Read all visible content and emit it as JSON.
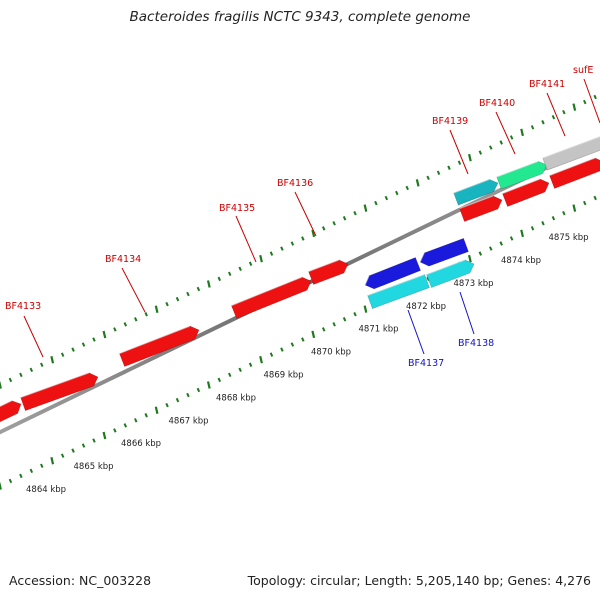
{
  "title": "Bacteroides fragilis NCTC 9343, complete genome",
  "footer": {
    "accession": "Accession: NC_003228",
    "summary": "Topology: circular; Length: 5,205,140 bp; Genes: 4,276"
  },
  "colors": {
    "forward_cds": "#ee1111",
    "reverse_cds": "#1a1add",
    "trna": "#22d8e0",
    "misc_teal": "#18b5c0",
    "misc_green": "#22e890",
    "misc_gray": "#c4c4c4",
    "tick": "#1f7a1f",
    "backbone": "#888888",
    "forward_label": "#cc0000",
    "reverse_label": "#1111cc"
  },
  "scale_labels": [
    "4864 kbp",
    "4865 kbp",
    "4866 kbp",
    "4867 kbp",
    "4868 kbp",
    "4869 kbp",
    "4870 kbp",
    "4871 kbp",
    "4872 kbp",
    "4873 kbp",
    "4874 kbp",
    "4875 kbp"
  ],
  "genes": {
    "forward": [
      "BF4133",
      "BF4134",
      "BF4135",
      "BF4136",
      "BF4139",
      "BF4140",
      "BF4141",
      "sufE"
    ],
    "reverse": [
      "BF4137",
      "BF4138"
    ]
  }
}
